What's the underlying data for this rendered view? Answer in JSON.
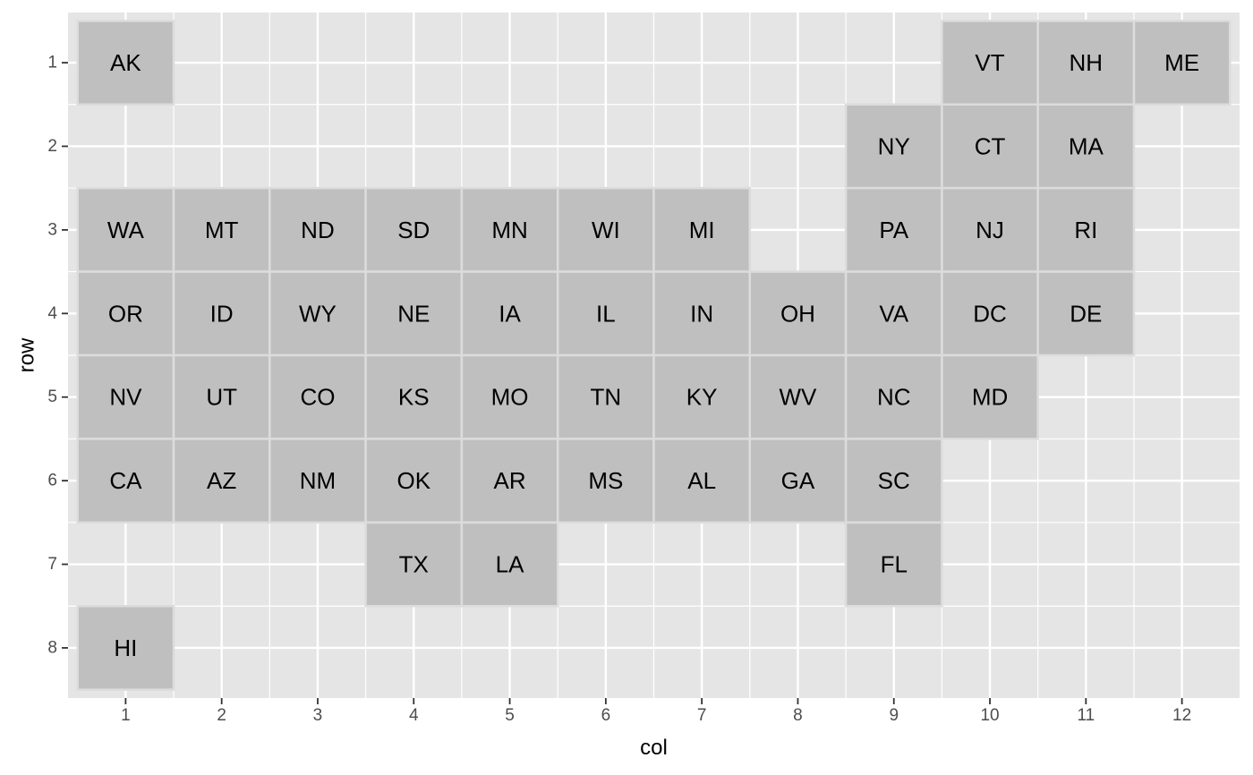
{
  "chart_data": {
    "type": "heatmap",
    "title": "",
    "xlabel": "col",
    "ylabel": "row",
    "xlim": [
      0.5,
      12.5
    ],
    "ylim": [
      0.5,
      8.5
    ],
    "y_reversed": true,
    "x_ticks": [
      1,
      2,
      3,
      4,
      5,
      6,
      7,
      8,
      9,
      10,
      11,
      12
    ],
    "y_ticks": [
      1,
      2,
      3,
      4,
      5,
      6,
      7,
      8
    ],
    "grid": true,
    "legend": "none",
    "colors": {
      "panel_background": "#e5e5e5",
      "grid_line": "#ffffff",
      "tile_fill": "#bfbfbf",
      "tile_border": "#dcdcdc",
      "tick_text": "#4d4d4d",
      "label_text": "#000000"
    },
    "tiles": [
      {
        "label": "AK",
        "col": 1,
        "row": 1
      },
      {
        "label": "VT",
        "col": 10,
        "row": 1
      },
      {
        "label": "NH",
        "col": 11,
        "row": 1
      },
      {
        "label": "ME",
        "col": 12,
        "row": 1
      },
      {
        "label": "NY",
        "col": 9,
        "row": 2
      },
      {
        "label": "CT",
        "col": 10,
        "row": 2
      },
      {
        "label": "MA",
        "col": 11,
        "row": 2
      },
      {
        "label": "WA",
        "col": 1,
        "row": 3
      },
      {
        "label": "MT",
        "col": 2,
        "row": 3
      },
      {
        "label": "ND",
        "col": 3,
        "row": 3
      },
      {
        "label": "SD",
        "col": 4,
        "row": 3
      },
      {
        "label": "MN",
        "col": 5,
        "row": 3
      },
      {
        "label": "WI",
        "col": 6,
        "row": 3
      },
      {
        "label": "MI",
        "col": 7,
        "row": 3
      },
      {
        "label": "PA",
        "col": 9,
        "row": 3
      },
      {
        "label": "NJ",
        "col": 10,
        "row": 3
      },
      {
        "label": "RI",
        "col": 11,
        "row": 3
      },
      {
        "label": "OR",
        "col": 1,
        "row": 4
      },
      {
        "label": "ID",
        "col": 2,
        "row": 4
      },
      {
        "label": "WY",
        "col": 3,
        "row": 4
      },
      {
        "label": "NE",
        "col": 4,
        "row": 4
      },
      {
        "label": "IA",
        "col": 5,
        "row": 4
      },
      {
        "label": "IL",
        "col": 6,
        "row": 4
      },
      {
        "label": "IN",
        "col": 7,
        "row": 4
      },
      {
        "label": "OH",
        "col": 8,
        "row": 4
      },
      {
        "label": "VA",
        "col": 9,
        "row": 4
      },
      {
        "label": "DC",
        "col": 10,
        "row": 4
      },
      {
        "label": "DE",
        "col": 11,
        "row": 4
      },
      {
        "label": "NV",
        "col": 1,
        "row": 5
      },
      {
        "label": "UT",
        "col": 2,
        "row": 5
      },
      {
        "label": "CO",
        "col": 3,
        "row": 5
      },
      {
        "label": "KS",
        "col": 4,
        "row": 5
      },
      {
        "label": "MO",
        "col": 5,
        "row": 5
      },
      {
        "label": "TN",
        "col": 6,
        "row": 5
      },
      {
        "label": "KY",
        "col": 7,
        "row": 5
      },
      {
        "label": "WV",
        "col": 8,
        "row": 5
      },
      {
        "label": "NC",
        "col": 9,
        "row": 5
      },
      {
        "label": "MD",
        "col": 10,
        "row": 5
      },
      {
        "label": "CA",
        "col": 1,
        "row": 6
      },
      {
        "label": "AZ",
        "col": 2,
        "row": 6
      },
      {
        "label": "NM",
        "col": 3,
        "row": 6
      },
      {
        "label": "OK",
        "col": 4,
        "row": 6
      },
      {
        "label": "AR",
        "col": 5,
        "row": 6
      },
      {
        "label": "MS",
        "col": 6,
        "row": 6
      },
      {
        "label": "AL",
        "col": 7,
        "row": 6
      },
      {
        "label": "GA",
        "col": 8,
        "row": 6
      },
      {
        "label": "SC",
        "col": 9,
        "row": 6
      },
      {
        "label": "TX",
        "col": 4,
        "row": 7
      },
      {
        "label": "LA",
        "col": 5,
        "row": 7
      },
      {
        "label": "FL",
        "col": 9,
        "row": 7
      },
      {
        "label": "HI",
        "col": 1,
        "row": 8
      }
    ]
  }
}
